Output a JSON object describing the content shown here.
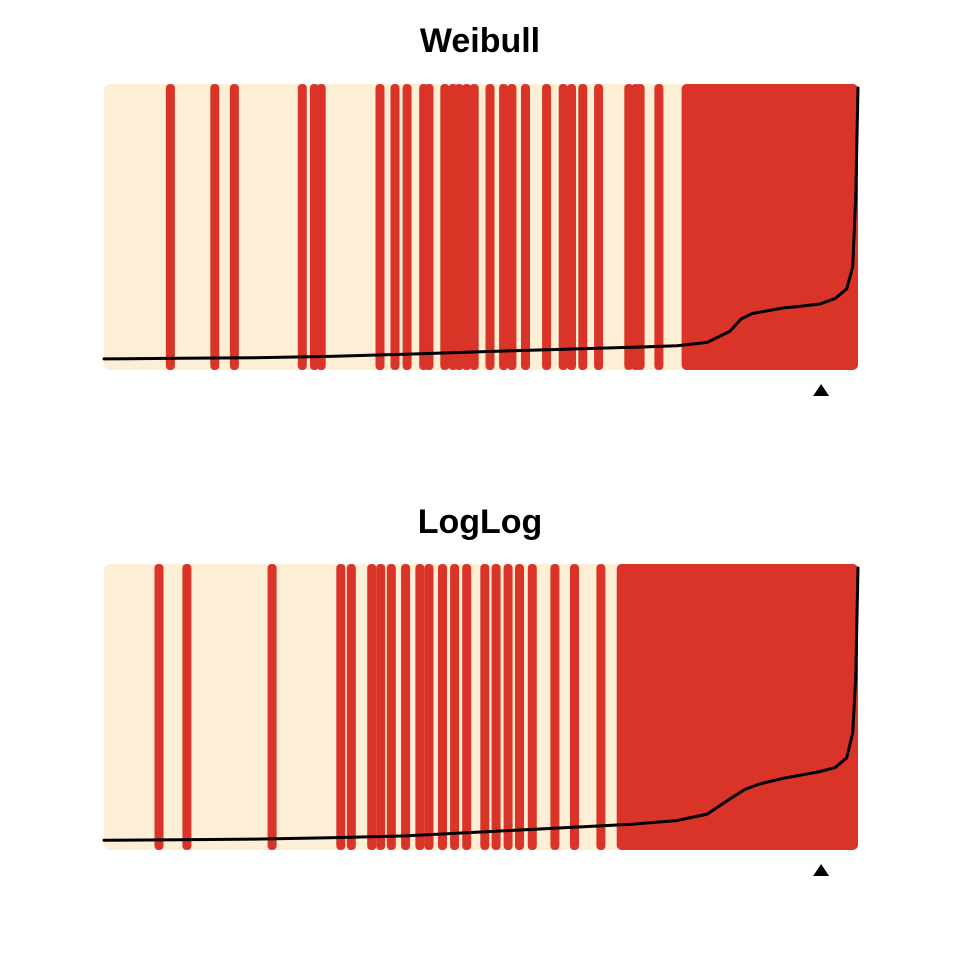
{
  "colors": {
    "background": "#fdeed6",
    "event_band": "#d93427",
    "curve": "#000000",
    "marker": "#000000"
  },
  "chart_data": [
    {
      "type": "bar",
      "title": "Weibull",
      "xlabel": "",
      "ylabel": "",
      "xlim": [
        0,
        100
      ],
      "ylim": [
        0,
        1
      ],
      "grid": false,
      "legend": "none",
      "event_bars": [
        8.8,
        14.7,
        17.3,
        26.3,
        27.9,
        28.8,
        36.6,
        38.6,
        40.2,
        42.4,
        43.1,
        45.2,
        46.3,
        47.1,
        48.1,
        49.1,
        51.2,
        53.0,
        54.1,
        55.9,
        58.7,
        60.9,
        62.0,
        63.5,
        65.6,
        69.6,
        70.5,
        71.1,
        73.6
      ],
      "event_block": [
        77.2,
        100
      ],
      "curve": {
        "x": [
          0,
          10,
          20,
          30,
          40,
          50,
          60,
          70,
          76,
          80,
          83,
          84.5,
          86,
          88,
          90,
          92,
          95,
          97,
          98.5,
          99.3,
          99.7,
          100
        ],
        "y": [
          0.015,
          0.017,
          0.019,
          0.024,
          0.032,
          0.041,
          0.049,
          0.057,
          0.063,
          0.075,
          0.115,
          0.16,
          0.18,
          0.19,
          0.2,
          0.205,
          0.215,
          0.235,
          0.27,
          0.35,
          0.6,
          1.0
        ]
      },
      "marker_x": 95.1
    },
    {
      "type": "bar",
      "title": "LogLog",
      "xlabel": "",
      "ylabel": "",
      "xlim": [
        0,
        100
      ],
      "ylim": [
        0,
        1
      ],
      "grid": false,
      "legend": "none",
      "event_bars": [
        7.3,
        11.0,
        22.3,
        31.4,
        32.8,
        35.5,
        36.7,
        38.1,
        40.0,
        41.9,
        43.1,
        44.9,
        46.5,
        48.1,
        50.5,
        52.0,
        53.6,
        55.1,
        56.8,
        59.8,
        62.4,
        65.9
      ],
      "event_block": [
        68.6,
        100
      ],
      "curve": {
        "x": [
          0,
          10,
          20,
          30,
          40,
          50,
          60,
          70,
          76,
          80,
          83,
          85,
          87,
          90,
          93,
          95,
          97,
          98.5,
          99.3,
          99.7,
          100
        ],
        "y": [
          0.01,
          0.012,
          0.014,
          0.019,
          0.026,
          0.04,
          0.054,
          0.068,
          0.082,
          0.105,
          0.16,
          0.195,
          0.215,
          0.235,
          0.25,
          0.26,
          0.275,
          0.31,
          0.4,
          0.6,
          1.0
        ]
      },
      "marker_x": 95.1
    }
  ]
}
